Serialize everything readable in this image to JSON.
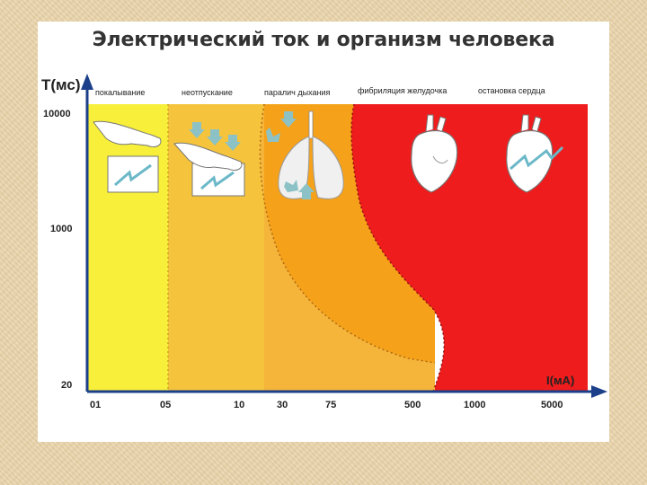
{
  "title": "Электрический ток и организм человека",
  "y_axis_label": "T(мс)",
  "x_axis_label": "I(мА)",
  "y_ticks": [
    "10000",
    "1000",
    "20"
  ],
  "x_ticks": [
    "01",
    "05",
    "10",
    "30",
    "75",
    "500",
    "1000",
    "5000"
  ],
  "zones": [
    {
      "label": "покалывание",
      "color": "#f7ef3a"
    },
    {
      "label": "неотпускание",
      "color": "#f5c43c"
    },
    {
      "label": "паралич дыхания",
      "color": "#f5a21a"
    },
    {
      "label": "фибриляция желудочка",
      "color": "#ee1c1c"
    },
    {
      "label": "остановка сердца",
      "color": "#ee1c1c"
    }
  ],
  "icons": [
    "hand-icon",
    "hand-arrows-icon",
    "lungs-icon",
    "heart-icon",
    "heart-shock-icon"
  ]
}
